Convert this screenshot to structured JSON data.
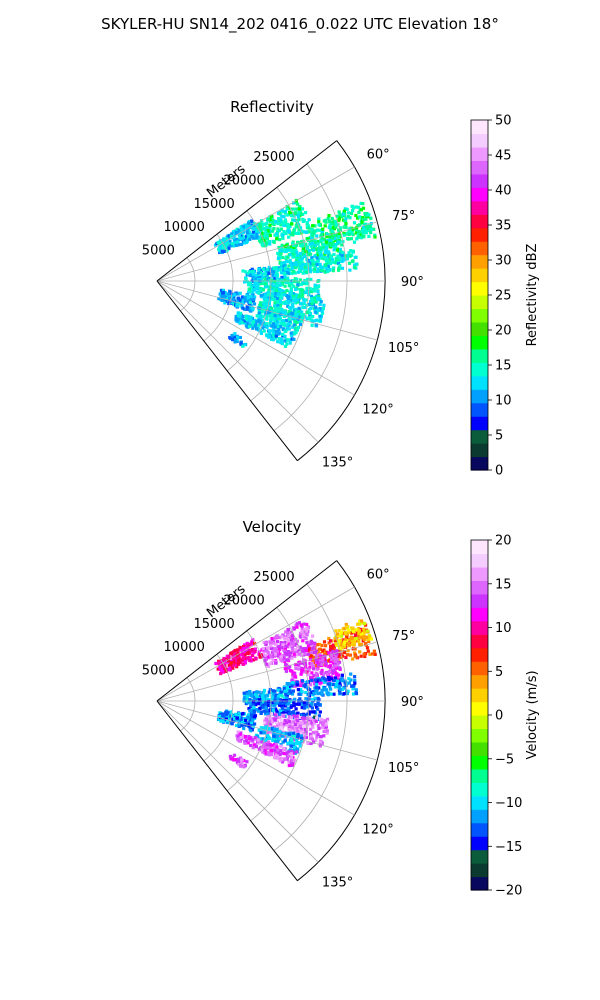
{
  "suptitle": "SKYLER-HU  SN14_202  0416_0.022 UTC Elevation 18°",
  "chart_data": [
    {
      "type": "heatmap",
      "title": "Reflectivity",
      "projection": "polar-sector",
      "theta_range_deg": [
        52,
        142
      ],
      "theta_ticks": [
        "60°",
        "75°",
        "90°",
        "105°",
        "120°",
        "135°"
      ],
      "radial_label": "Meters",
      "radial_ticks": [
        "5000",
        "10000",
        "15000",
        "20000",
        "25000"
      ],
      "rmax_m": 25000,
      "grid": true,
      "colorbar": {
        "label": "Reflectivity dBZ",
        "range": [
          0,
          50
        ],
        "ticks": [
          "0",
          "5",
          "10",
          "15",
          "20",
          "25",
          "30",
          "35",
          "40",
          "45",
          "50"
        ],
        "colormap": [
          "#08085e",
          "#0a3a30",
          "#0b5c3a",
          "#0000ff",
          "#0055ff",
          "#00a0ff",
          "#00e0ff",
          "#00ffd0",
          "#00ff90",
          "#00ff00",
          "#44e000",
          "#80ff00",
          "#c8ff00",
          "#ffff00",
          "#ffd000",
          "#ffa000",
          "#ff6000",
          "#ff2000",
          "#ff0040",
          "#ff00a0",
          "#ff00ff",
          "#cc33ff",
          "#dd66ff",
          "#ee99ff",
          "#f5ccff",
          "#ffe6ff"
        ]
      },
      "field": {
        "clusters": [
          {
            "theta": 74,
            "r": 21000,
            "dr": 3500,
            "dt": 5,
            "v": 16
          },
          {
            "theta": 79,
            "r": 17000,
            "dr": 3500,
            "dt": 5,
            "v": 15
          },
          {
            "theta": 84,
            "r": 18000,
            "dr": 4000,
            "dt": 3,
            "v": 14
          },
          {
            "theta": 66,
            "r": 15000,
            "dr": 3000,
            "dt": 6,
            "v": 15
          },
          {
            "theta": 62,
            "r": 10000,
            "dr": 2500,
            "dt": 5,
            "v": 12
          },
          {
            "theta": 87,
            "r": 12000,
            "dr": 2500,
            "dt": 4,
            "v": 12
          },
          {
            "theta": 93,
            "r": 14000,
            "dr": 4000,
            "dt": 4,
            "v": 14
          },
          {
            "theta": 101,
            "r": 15000,
            "dr": 3500,
            "dt": 5,
            "v": 13
          },
          {
            "theta": 107,
            "r": 14000,
            "dr": 2500,
            "dt": 4,
            "v": 13
          },
          {
            "theta": 114,
            "r": 13000,
            "dr": 3500,
            "dt": 3,
            "v": 12
          },
          {
            "theta": 103,
            "r": 9000,
            "dr": 2000,
            "dt": 5,
            "v": 11
          },
          {
            "theta": 126,
            "r": 11000,
            "dr": 1000,
            "dt": 2,
            "v": 11
          }
        ]
      }
    },
    {
      "type": "heatmap",
      "title": "Velocity",
      "projection": "polar-sector",
      "theta_range_deg": [
        52,
        142
      ],
      "theta_ticks": [
        "60°",
        "75°",
        "90°",
        "105°",
        "120°",
        "135°"
      ],
      "radial_label": "Meters",
      "radial_ticks": [
        "5000",
        "10000",
        "15000",
        "20000",
        "25000"
      ],
      "rmax_m": 25000,
      "grid": true,
      "colorbar": {
        "label": "Velocity (m/s)",
        "range": [
          -20,
          20
        ],
        "ticks": [
          "−20",
          "−15",
          "−10",
          "−5",
          "0",
          "5",
          "10",
          "15",
          "20"
        ],
        "colormap": [
          "#08085e",
          "#0a3a30",
          "#0b5c3a",
          "#0000ff",
          "#0055ff",
          "#00a0ff",
          "#00e0ff",
          "#00ffd0",
          "#00ff90",
          "#00ff00",
          "#44e000",
          "#80ff00",
          "#c8ff00",
          "#ffff00",
          "#ffd000",
          "#ffa000",
          "#ff6000",
          "#ff2000",
          "#ff0040",
          "#ff00a0",
          "#ff00ff",
          "#cc33ff",
          "#dd66ff",
          "#ee99ff",
          "#f5ccff",
          "#ffe6ff"
        ]
      },
      "field": {
        "clusters": [
          {
            "theta": 74,
            "r": 21000,
            "dr": 3500,
            "dt": 4,
            "v": 6
          },
          {
            "theta": 71,
            "r": 22500,
            "dr": 2000,
            "dt": 3,
            "v": 2
          },
          {
            "theta": 79,
            "r": 17500,
            "dr": 3000,
            "dt": 5,
            "v": 13
          },
          {
            "theta": 67,
            "r": 15500,
            "dr": 3000,
            "dt": 6,
            "v": 14
          },
          {
            "theta": 62,
            "r": 10000,
            "dr": 2500,
            "dt": 5,
            "v": 10
          },
          {
            "theta": 85,
            "r": 18000,
            "dr": 4000,
            "dt": 3,
            "v": -12
          },
          {
            "theta": 88,
            "r": 12000,
            "dr": 2500,
            "dt": 4,
            "v": -11
          },
          {
            "theta": 93,
            "r": 14000,
            "dr": 4000,
            "dt": 4,
            "v": -13
          },
          {
            "theta": 101,
            "r": 15500,
            "dr": 3500,
            "dt": 5,
            "v": 15
          },
          {
            "theta": 107,
            "r": 14000,
            "dr": 2500,
            "dt": 4,
            "v": -11
          },
          {
            "theta": 113,
            "r": 13000,
            "dr": 3500,
            "dt": 3,
            "v": 14
          },
          {
            "theta": 103,
            "r": 9000,
            "dr": 2000,
            "dt": 5,
            "v": -12
          },
          {
            "theta": 126,
            "r": 11000,
            "dr": 1000,
            "dt": 2,
            "v": 14
          }
        ]
      }
    }
  ]
}
